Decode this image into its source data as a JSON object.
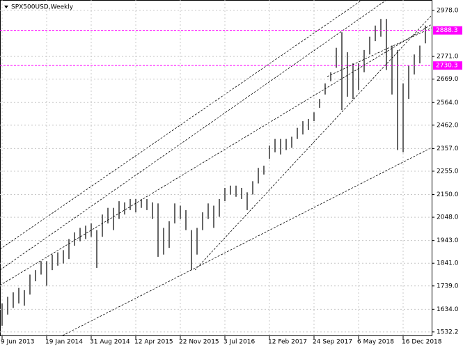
{
  "chart_data": {
    "type": "ohlc",
    "title": "SPX500USD,Weekly",
    "x": [
      0,
      4,
      8,
      12,
      16,
      20,
      24,
      28,
      32,
      36,
      40,
      44,
      48,
      52,
      56,
      60,
      64,
      68,
      72,
      76,
      80,
      84,
      88,
      92,
      96,
      100,
      104,
      108,
      112,
      116,
      120,
      124,
      128,
      132,
      136,
      140,
      144,
      148,
      152,
      156,
      160,
      164,
      168,
      172,
      176,
      180,
      184,
      188,
      192,
      196,
      200,
      204,
      208,
      212,
      216,
      220,
      224,
      228,
      232,
      236,
      240,
      244,
      248,
      252,
      256,
      260,
      264,
      268,
      272,
      276,
      280,
      284,
      288,
      292,
      296,
      300,
      304
    ],
    "high": [
      1660,
      1690,
      1710,
      1730,
      1720,
      1790,
      1810,
      1850,
      1850,
      1880,
      1890,
      1900,
      1950,
      1980,
      2000,
      2010,
      2020,
      1990,
      2060,
      2090,
      2090,
      2120,
      2115,
      2130,
      2130,
      2130,
      2130,
      2115,
      2110,
      2000,
      2030,
      2110,
      2100,
      2080,
      1990,
      2000,
      2070,
      2110,
      2100,
      2130,
      2180,
      2190,
      2190,
      2180,
      2160,
      2210,
      2270,
      2280,
      2370,
      2400,
      2400,
      2400,
      2410,
      2450,
      2480,
      2490,
      2520,
      2580,
      2650,
      2700,
      2810,
      2880,
      2790,
      2740,
      2740,
      2800,
      2860,
      2910,
      2940,
      2940,
      2820,
      2800,
      2650,
      2730,
      2780,
      2820,
      2910
    ],
    "low": [
      1560,
      1610,
      1640,
      1660,
      1650,
      1700,
      1760,
      1790,
      1740,
      1810,
      1830,
      1840,
      1860,
      1920,
      1940,
      1950,
      1960,
      1820,
      1960,
      2020,
      1990,
      2040,
      2060,
      2080,
      2070,
      2090,
      2080,
      2040,
      1870,
      1880,
      1910,
      2020,
      2040,
      1990,
      1810,
      1880,
      1990,
      2040,
      2000,
      2050,
      2120,
      2150,
      2140,
      2130,
      2080,
      2150,
      2200,
      2240,
      2310,
      2340,
      2330,
      2350,
      2360,
      2400,
      2420,
      2440,
      2480,
      2540,
      2600,
      2660,
      2720,
      2530,
      2590,
      2580,
      2620,
      2700,
      2780,
      2840,
      2860,
      2710,
      2600,
      2350,
      2340,
      2580,
      2690,
      2740,
      2830
    ],
    "color": "#000000",
    "xlim": [
      -1.5,
      308.5
    ],
    "xticks": [
      {
        "value": 0,
        "label": "9 Jun 2013"
      },
      {
        "value": 32,
        "label": "19 Jan 2014"
      },
      {
        "value": 64,
        "label": "31 Aug 2014"
      },
      {
        "value": 96,
        "label": "12 Apr 2015"
      },
      {
        "value": 128,
        "label": "22 Nov 2015"
      },
      {
        "value": 160,
        "label": "3 Jul 2016"
      },
      {
        "value": 192,
        "label": "12 Feb 2017"
      },
      {
        "value": 224,
        "label": "24 Sep 2017"
      },
      {
        "value": 256,
        "label": "6 May 2018"
      },
      {
        "value": 288,
        "label": "16 Dec 2018"
      }
    ],
    "ylim": [
      1513,
      3025
    ],
    "yticks": [
      {
        "value": 2978,
        "label": "2978.0"
      },
      {
        "value": 2771,
        "label": "2771.0"
      },
      {
        "value": 2669,
        "label": "2669.0"
      },
      {
        "value": 2564,
        "label": "2564.0"
      },
      {
        "value": 2462,
        "label": "2462.0"
      },
      {
        "value": 2357,
        "label": "2357.0"
      },
      {
        "value": 2255,
        "label": "2255.0"
      },
      {
        "value": 2150,
        "label": "2150.0"
      },
      {
        "value": 2048,
        "label": "2048.0"
      },
      {
        "value": 1943,
        "label": "1943.0"
      },
      {
        "value": 1841,
        "label": "1841.0"
      },
      {
        "value": 1739,
        "label": "1739.0"
      },
      {
        "value": 1634,
        "label": "1634.0"
      },
      1532.2
    ],
    "levels": [
      2888.3,
      2730.3
    ],
    "level_color": "#ff00ff",
    "grid": true
  }
}
